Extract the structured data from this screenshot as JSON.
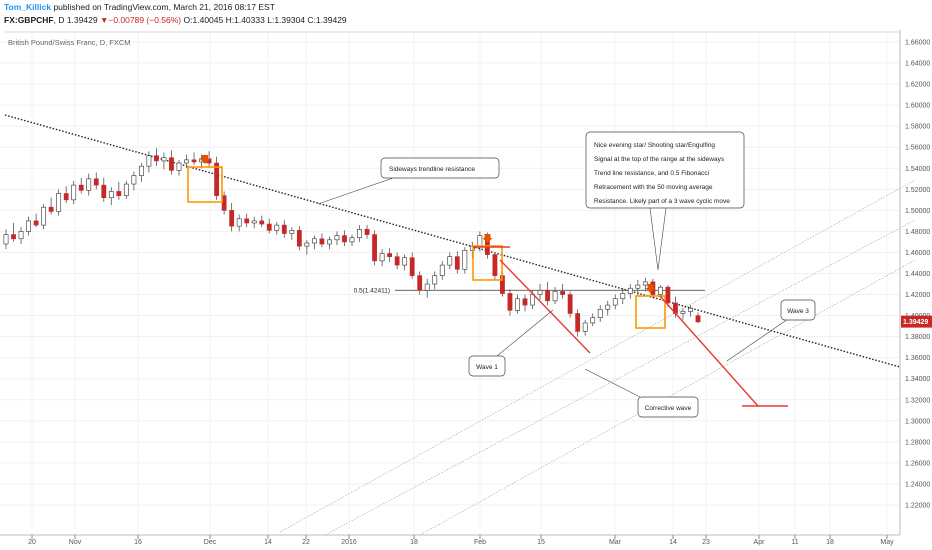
{
  "header": {
    "author": "Tom_Killick",
    "published": "published on TradingView.com, March 21, 2016 08:17 EST",
    "symbol": "FX:GBPCHF",
    "interval": ", D ",
    "last": "1.39429",
    "change_arrow": "▼",
    "change": "−0.00789 (−0.56%)",
    "o_label": "O:",
    "o": "1.40045",
    "h_label": "H:",
    "h": "1.40333",
    "l_label": "L:",
    "l": "1.39304",
    "c_label": "C:",
    "c": "1.39429"
  },
  "chart_data": {
    "type": "candlestick",
    "title": "British Pound/Swiss Franc, D, FXCM",
    "y_ticks": [
      "1.66000",
      "1.64000",
      "1.62000",
      "1.60000",
      "1.58000",
      "1.56000",
      "1.54000",
      "1.52000",
      "1.50000",
      "1.48000",
      "1.46000",
      "1.44000",
      "1.42000",
      "1.40000",
      "1.38000",
      "1.36000",
      "1.34000",
      "1.32000",
      "1.30000",
      "1.28000",
      "1.26000",
      "1.24000",
      "1.22000"
    ],
    "ylim": [
      1.21,
      1.675
    ],
    "x_ticks": [
      "20",
      "Nov",
      "16",
      "Dec",
      "14",
      "22",
      "2016",
      "18",
      "Feb",
      "15",
      "Mar",
      "14",
      "23",
      "Apr",
      "11",
      "18",
      "May"
    ],
    "current_price": "1.39429",
    "candles": [
      {
        "o": 1.468,
        "h": 1.482,
        "l": 1.463,
        "c": 1.477
      },
      {
        "o": 1.477,
        "h": 1.488,
        "l": 1.47,
        "c": 1.473
      },
      {
        "o": 1.473,
        "h": 1.484,
        "l": 1.468,
        "c": 1.48
      },
      {
        "o": 1.48,
        "h": 1.494,
        "l": 1.476,
        "c": 1.49
      },
      {
        "o": 1.49,
        "h": 1.497,
        "l": 1.484,
        "c": 1.486
      },
      {
        "o": 1.486,
        "h": 1.506,
        "l": 1.482,
        "c": 1.503
      },
      {
        "o": 1.503,
        "h": 1.512,
        "l": 1.496,
        "c": 1.499
      },
      {
        "o": 1.499,
        "h": 1.52,
        "l": 1.495,
        "c": 1.516
      },
      {
        "o": 1.516,
        "h": 1.523,
        "l": 1.507,
        "c": 1.51
      },
      {
        "o": 1.51,
        "h": 1.528,
        "l": 1.506,
        "c": 1.524
      },
      {
        "o": 1.524,
        "h": 1.531,
        "l": 1.516,
        "c": 1.519
      },
      {
        "o": 1.519,
        "h": 1.535,
        "l": 1.514,
        "c": 1.53
      },
      {
        "o": 1.53,
        "h": 1.536,
        "l": 1.52,
        "c": 1.524
      },
      {
        "o": 1.524,
        "h": 1.531,
        "l": 1.508,
        "c": 1.512
      },
      {
        "o": 1.512,
        "h": 1.522,
        "l": 1.505,
        "c": 1.518
      },
      {
        "o": 1.518,
        "h": 1.527,
        "l": 1.51,
        "c": 1.514
      },
      {
        "o": 1.514,
        "h": 1.528,
        "l": 1.511,
        "c": 1.525
      },
      {
        "o": 1.525,
        "h": 1.537,
        "l": 1.519,
        "c": 1.533
      },
      {
        "o": 1.533,
        "h": 1.545,
        "l": 1.527,
        "c": 1.542
      },
      {
        "o": 1.542,
        "h": 1.556,
        "l": 1.536,
        "c": 1.552
      },
      {
        "o": 1.552,
        "h": 1.559,
        "l": 1.542,
        "c": 1.547
      },
      {
        "o": 1.547,
        "h": 1.555,
        "l": 1.539,
        "c": 1.55
      },
      {
        "o": 1.55,
        "h": 1.557,
        "l": 1.534,
        "c": 1.538
      },
      {
        "o": 1.538,
        "h": 1.548,
        "l": 1.533,
        "c": 1.545
      },
      {
        "o": 1.545,
        "h": 1.553,
        "l": 1.54,
        "c": 1.548
      },
      {
        "o": 1.548,
        "h": 1.555,
        "l": 1.543,
        "c": 1.546
      },
      {
        "o": 1.546,
        "h": 1.553,
        "l": 1.54,
        "c": 1.549
      },
      {
        "o": 1.549,
        "h": 1.556,
        "l": 1.542,
        "c": 1.545
      },
      {
        "o": 1.545,
        "h": 1.551,
        "l": 1.51,
        "c": 1.514
      },
      {
        "o": 1.514,
        "h": 1.518,
        "l": 1.496,
        "c": 1.5
      },
      {
        "o": 1.5,
        "h": 1.507,
        "l": 1.48,
        "c": 1.485
      },
      {
        "o": 1.485,
        "h": 1.496,
        "l": 1.48,
        "c": 1.492
      },
      {
        "o": 1.492,
        "h": 1.497,
        "l": 1.484,
        "c": 1.488
      },
      {
        "o": 1.488,
        "h": 1.494,
        "l": 1.483,
        "c": 1.49
      },
      {
        "o": 1.49,
        "h": 1.495,
        "l": 1.484,
        "c": 1.487
      },
      {
        "o": 1.487,
        "h": 1.492,
        "l": 1.478,
        "c": 1.481
      },
      {
        "o": 1.481,
        "h": 1.489,
        "l": 1.477,
        "c": 1.486
      },
      {
        "o": 1.486,
        "h": 1.491,
        "l": 1.474,
        "c": 1.478
      },
      {
        "o": 1.478,
        "h": 1.484,
        "l": 1.472,
        "c": 1.481
      },
      {
        "o": 1.481,
        "h": 1.485,
        "l": 1.462,
        "c": 1.466
      },
      {
        "o": 1.466,
        "h": 1.472,
        "l": 1.458,
        "c": 1.469
      },
      {
        "o": 1.469,
        "h": 1.476,
        "l": 1.463,
        "c": 1.473
      },
      {
        "o": 1.473,
        "h": 1.478,
        "l": 1.465,
        "c": 1.468
      },
      {
        "o": 1.468,
        "h": 1.475,
        "l": 1.463,
        "c": 1.472
      },
      {
        "o": 1.472,
        "h": 1.48,
        "l": 1.467,
        "c": 1.476
      },
      {
        "o": 1.476,
        "h": 1.481,
        "l": 1.466,
        "c": 1.47
      },
      {
        "o": 1.47,
        "h": 1.477,
        "l": 1.466,
        "c": 1.474
      },
      {
        "o": 1.474,
        "h": 1.486,
        "l": 1.47,
        "c": 1.482
      },
      {
        "o": 1.482,
        "h": 1.486,
        "l": 1.473,
        "c": 1.477
      },
      {
        "o": 1.477,
        "h": 1.481,
        "l": 1.448,
        "c": 1.452
      },
      {
        "o": 1.452,
        "h": 1.463,
        "l": 1.447,
        "c": 1.459
      },
      {
        "o": 1.459,
        "h": 1.464,
        "l": 1.451,
        "c": 1.456
      },
      {
        "o": 1.456,
        "h": 1.46,
        "l": 1.444,
        "c": 1.448
      },
      {
        "o": 1.448,
        "h": 1.458,
        "l": 1.443,
        "c": 1.455
      },
      {
        "o": 1.455,
        "h": 1.46,
        "l": 1.435,
        "c": 1.438
      },
      {
        "o": 1.438,
        "h": 1.442,
        "l": 1.42,
        "c": 1.424
      },
      {
        "o": 1.424,
        "h": 1.435,
        "l": 1.417,
        "c": 1.43
      },
      {
        "o": 1.43,
        "h": 1.442,
        "l": 1.425,
        "c": 1.438
      },
      {
        "o": 1.438,
        "h": 1.452,
        "l": 1.434,
        "c": 1.448
      },
      {
        "o": 1.448,
        "h": 1.46,
        "l": 1.444,
        "c": 1.456
      },
      {
        "o": 1.456,
        "h": 1.461,
        "l": 1.44,
        "c": 1.444
      },
      {
        "o": 1.444,
        "h": 1.465,
        "l": 1.44,
        "c": 1.462
      },
      {
        "o": 1.462,
        "h": 1.47,
        "l": 1.455,
        "c": 1.466
      },
      {
        "o": 1.466,
        "h": 1.48,
        "l": 1.461,
        "c": 1.476
      },
      {
        "o": 1.476,
        "h": 1.479,
        "l": 1.454,
        "c": 1.458
      },
      {
        "o": 1.458,
        "h": 1.46,
        "l": 1.434,
        "c": 1.438
      },
      {
        "o": 1.438,
        "h": 1.442,
        "l": 1.418,
        "c": 1.421
      },
      {
        "o": 1.421,
        "h": 1.425,
        "l": 1.4,
        "c": 1.405
      },
      {
        "o": 1.405,
        "h": 1.42,
        "l": 1.402,
        "c": 1.416
      },
      {
        "o": 1.416,
        "h": 1.42,
        "l": 1.404,
        "c": 1.41
      },
      {
        "o": 1.41,
        "h": 1.424,
        "l": 1.406,
        "c": 1.42
      },
      {
        "o": 1.42,
        "h": 1.43,
        "l": 1.415,
        "c": 1.424
      },
      {
        "o": 1.424,
        "h": 1.432,
        "l": 1.41,
        "c": 1.414
      },
      {
        "o": 1.414,
        "h": 1.427,
        "l": 1.411,
        "c": 1.423
      },
      {
        "o": 1.423,
        "h": 1.43,
        "l": 1.416,
        "c": 1.42
      },
      {
        "o": 1.42,
        "h": 1.423,
        "l": 1.398,
        "c": 1.402
      },
      {
        "o": 1.402,
        "h": 1.406,
        "l": 1.38,
        "c": 1.385
      },
      {
        "o": 1.385,
        "h": 1.396,
        "l": 1.381,
        "c": 1.393
      },
      {
        "o": 1.393,
        "h": 1.402,
        "l": 1.39,
        "c": 1.398
      },
      {
        "o": 1.398,
        "h": 1.41,
        "l": 1.394,
        "c": 1.406
      },
      {
        "o": 1.406,
        "h": 1.414,
        "l": 1.4,
        "c": 1.41
      },
      {
        "o": 1.41,
        "h": 1.42,
        "l": 1.406,
        "c": 1.416
      },
      {
        "o": 1.416,
        "h": 1.426,
        "l": 1.411,
        "c": 1.421
      },
      {
        "o": 1.421,
        "h": 1.43,
        "l": 1.416,
        "c": 1.426
      },
      {
        "o": 1.426,
        "h": 1.434,
        "l": 1.419,
        "c": 1.429
      },
      {
        "o": 1.429,
        "h": 1.436,
        "l": 1.423,
        "c": 1.432
      },
      {
        "o": 1.432,
        "h": 1.435,
        "l": 1.417,
        "c": 1.42
      },
      {
        "o": 1.42,
        "h": 1.429,
        "l": 1.417,
        "c": 1.427
      },
      {
        "o": 1.427,
        "h": 1.429,
        "l": 1.408,
        "c": 1.412
      },
      {
        "o": 1.412,
        "h": 1.418,
        "l": 1.398,
        "c": 1.402
      },
      {
        "o": 1.402,
        "h": 1.407,
        "l": 1.396,
        "c": 1.404
      },
      {
        "o": 1.404,
        "h": 1.41,
        "l": 1.399,
        "c": 1.407
      },
      {
        "o": 1.4,
        "h": 1.403,
        "l": 1.393,
        "c": 1.394
      }
    ],
    "annotations": {
      "box_text": [
        "Nice evening star/ Shooting star/Engulfing",
        "Signal at the top of the range at the sideways",
        "Trend line resistance, and 0.5 Fibonacci",
        "Retracement with the 50 moving average",
        "Resistance. Likely part of a 3 wave cyclic move"
      ],
      "trendline_label": "Sideways trendline resistance",
      "fib_label": "0.5(1.42411)",
      "wave1_label": "Wave 1",
      "wave3_label": "Wave 3",
      "corrective_label": "Corrective wave"
    },
    "colors": {
      "up": "#ffffff",
      "down": "#c62828",
      "wick": "#555555",
      "highlight": "#ff9800",
      "projection": "#e53935",
      "trend": "#222222",
      "channel": "#9e9e9e"
    }
  }
}
